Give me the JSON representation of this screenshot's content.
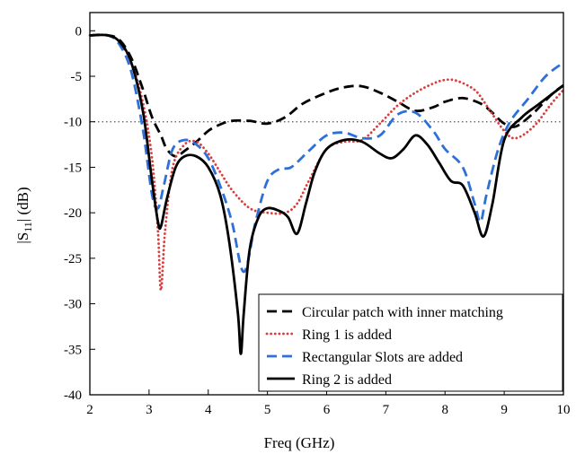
{
  "chart_data": {
    "type": "line",
    "xlabel": "Freq (GHz)",
    "ylabel": "|S11| (dB)",
    "ylabel_main": "|S",
    "ylabel_sub": "11",
    "ylabel_tail": "| (dB)",
    "xlim": [
      2,
      10
    ],
    "ylim": [
      -40,
      2
    ],
    "xticks": [
      2,
      3,
      4,
      5,
      6,
      7,
      8,
      9,
      10
    ],
    "yticks": [
      0,
      -5,
      -10,
      -15,
      -20,
      -25,
      -30,
      -35,
      -40
    ],
    "reference_line": {
      "y": -10,
      "style": "dotted",
      "color": "#555555"
    },
    "legend_position": "bottom-right",
    "series": [
      {
        "name": "Circular patch with inner matching",
        "color": "#000000",
        "dash": "dashed",
        "x": [
          2.0,
          2.3,
          2.5,
          2.7,
          2.9,
          3.05,
          3.2,
          3.3,
          3.45,
          3.6,
          3.8,
          4.0,
          4.2,
          4.4,
          4.7,
          5.0,
          5.3,
          5.6,
          6.0,
          6.3,
          6.6,
          6.9,
          7.2,
          7.5,
          7.8,
          8.0,
          8.3,
          8.6,
          8.8,
          9.0,
          9.2,
          9.5,
          9.8,
          10.0
        ],
        "y": [
          -0.5,
          -0.5,
          -1.0,
          -3.0,
          -6.5,
          -9.5,
          -11.5,
          -13.0,
          -13.8,
          -13.2,
          -12.2,
          -11.0,
          -10.3,
          -9.9,
          -9.9,
          -10.2,
          -9.5,
          -8.0,
          -6.8,
          -6.2,
          -6.1,
          -6.8,
          -7.8,
          -8.8,
          -8.4,
          -7.8,
          -7.4,
          -8.0,
          -9.0,
          -10.2,
          -10.5,
          -9.0,
          -7.0,
          -6.0
        ]
      },
      {
        "name": "Ring 1 is added",
        "color": "#d84040",
        "dash": "dotted",
        "x": [
          2.0,
          2.3,
          2.5,
          2.7,
          2.9,
          3.05,
          3.15,
          3.2,
          3.27,
          3.4,
          3.6,
          3.8,
          4.0,
          4.2,
          4.4,
          4.7,
          5.0,
          5.3,
          5.5,
          5.7,
          6.0,
          6.3,
          6.6,
          6.9,
          7.2,
          7.5,
          7.8,
          8.0,
          8.2,
          8.5,
          8.7,
          9.0,
          9.2,
          9.5,
          9.8,
          10.0
        ],
        "y": [
          -0.5,
          -0.5,
          -1.2,
          -3.5,
          -8.0,
          -14.0,
          -22.0,
          -28.5,
          -22.0,
          -15.0,
          -12.5,
          -12.2,
          -13.5,
          -15.5,
          -17.5,
          -19.5,
          -20.0,
          -20.0,
          -19.0,
          -16.5,
          -13.0,
          -12.2,
          -12.0,
          -10.2,
          -8.2,
          -6.8,
          -5.8,
          -5.4,
          -5.5,
          -6.5,
          -8.2,
          -11.0,
          -11.8,
          -10.5,
          -8.0,
          -6.5
        ]
      },
      {
        "name": "Rectangular Slots are added",
        "color": "#2e6fd8",
        "dash": "dashed",
        "x": [
          2.0,
          2.3,
          2.5,
          2.7,
          2.9,
          3.05,
          3.15,
          3.25,
          3.4,
          3.6,
          3.8,
          4.0,
          4.2,
          4.4,
          4.6,
          4.8,
          5.0,
          5.2,
          5.4,
          5.7,
          6.0,
          6.3,
          6.6,
          6.9,
          7.2,
          7.5,
          7.8,
          8.0,
          8.3,
          8.5,
          8.6,
          8.7,
          8.9,
          9.1,
          9.4,
          9.7,
          10.0
        ],
        "y": [
          -0.5,
          -0.5,
          -1.5,
          -4.5,
          -11.0,
          -18.0,
          -19.5,
          -17.0,
          -13.0,
          -12.0,
          -12.5,
          -14.0,
          -17.0,
          -21.0,
          -26.5,
          -21.0,
          -16.5,
          -15.2,
          -15.0,
          -13.2,
          -11.5,
          -11.2,
          -11.8,
          -11.5,
          -9.2,
          -9.0,
          -11.0,
          -13.0,
          -15.0,
          -19.0,
          -21.0,
          -18.0,
          -13.0,
          -10.0,
          -7.5,
          -5.0,
          -3.5
        ]
      },
      {
        "name": "Ring 2 is added",
        "color": "#000000",
        "dash": "solid",
        "x": [
          2.0,
          2.3,
          2.5,
          2.7,
          2.9,
          3.05,
          3.15,
          3.2,
          3.3,
          3.45,
          3.6,
          3.8,
          4.0,
          4.2,
          4.35,
          4.5,
          4.55,
          4.6,
          4.7,
          4.85,
          5.0,
          5.2,
          5.35,
          5.5,
          5.65,
          5.8,
          6.0,
          6.3,
          6.6,
          6.9,
          7.1,
          7.3,
          7.5,
          7.7,
          7.9,
          8.1,
          8.3,
          8.5,
          8.65,
          8.8,
          9.0,
          9.3,
          9.6,
          10.0
        ],
        "y": [
          -0.5,
          -0.5,
          -1.2,
          -3.5,
          -9.0,
          -16.5,
          -21.0,
          -21.5,
          -18.5,
          -15.0,
          -13.8,
          -13.8,
          -15.0,
          -18.0,
          -23.0,
          -31.0,
          -35.5,
          -31.0,
          -24.0,
          -20.5,
          -19.5,
          -19.8,
          -20.5,
          -22.3,
          -19.0,
          -15.5,
          -13.0,
          -12.0,
          -12.2,
          -13.5,
          -14.0,
          -13.0,
          -11.5,
          -12.5,
          -14.5,
          -16.5,
          -17.0,
          -20.0,
          -22.6,
          -19.0,
          -12.0,
          -9.5,
          -8.0,
          -6.0
        ]
      }
    ]
  }
}
